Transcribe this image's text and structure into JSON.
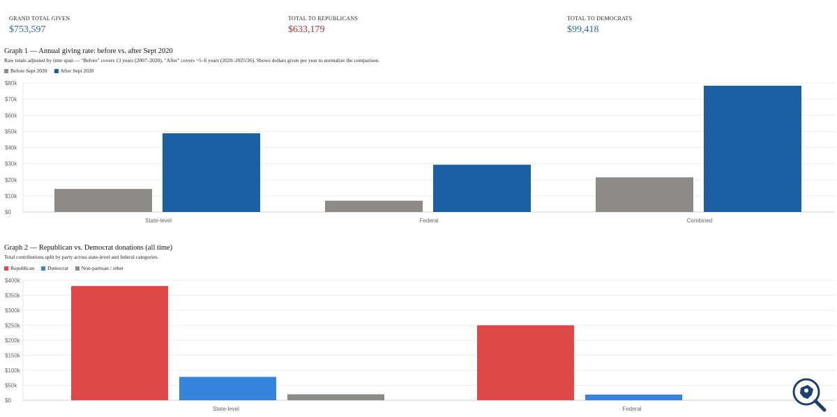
{
  "stats": [
    {
      "label": "GRAND TOTAL GIVEN",
      "value": "$753,597",
      "color": "#2e6aa8"
    },
    {
      "label": "TOTAL TO REPUBLICANS",
      "value": "$633,179",
      "color": "#a83232"
    },
    {
      "label": "TOTAL TO DEMOCRATS",
      "value": "$99,418",
      "color": "#2e6aa8"
    }
  ],
  "graph1": {
    "title": "Graph 1 — Annual giving rate: before vs. after Sept 2020",
    "subtitle": "Raw totals adjusted by time span — \"Before\" covers 13 years (2007–2020), \"After\" covers ~5–6 years (2020–2025/26). Shows dollars given per year to normalize the comparison.",
    "legend": [
      {
        "label": "Before Sept 2020",
        "color": "#8c8b87"
      },
      {
        "label": "After Sept 2020",
        "color": "#1b5fa3"
      }
    ]
  },
  "graph2": {
    "title": "Graph 2 — Republican vs. Democrat donations (all time)",
    "subtitle": "Total contributions split by party across state-level and federal categories.",
    "legend": [
      {
        "label": "Republican",
        "color": "#e04848"
      },
      {
        "label": "Democrat",
        "color": "#3585df"
      },
      {
        "label": "Non-partisan / other",
        "color": "#8c8b87"
      }
    ]
  },
  "chart_data": [
    {
      "type": "bar",
      "title": "Graph 1 — Annual giving rate: before vs. after Sept 2020",
      "categories": [
        "State-level",
        "Federal",
        "Combined"
      ],
      "series": [
        {
          "name": "Before Sept 2020",
          "color": "#8c8b87",
          "values": [
            14300,
            7000,
            21500
          ]
        },
        {
          "name": "After Sept 2020",
          "color": "#1b5fa3",
          "values": [
            48800,
            29300,
            78300
          ]
        }
      ],
      "ylim": [
        0,
        80000
      ],
      "yticks": [
        0,
        10000,
        20000,
        30000,
        40000,
        50000,
        60000,
        70000,
        80000
      ],
      "ytick_labels": [
        "$0",
        "$10k",
        "$20k",
        "$30k",
        "$40k",
        "$50k",
        "$60k",
        "$70k",
        "$80k"
      ],
      "grid": true
    },
    {
      "type": "bar",
      "title": "Graph 2 — Republican vs. Democrat donations (all time)",
      "categories": [
        "State-level",
        "Federal"
      ],
      "series": [
        {
          "name": "Republican",
          "color": "#e04848",
          "values": [
            381000,
            250000
          ]
        },
        {
          "name": "Democrat",
          "color": "#3585df",
          "values": [
            78000,
            19000
          ]
        },
        {
          "name": "Non-partisan / other",
          "color": "#8c8b87",
          "values": [
            20000,
            0
          ]
        }
      ],
      "ylim": [
        0,
        400000
      ],
      "yticks": [
        0,
        50000,
        100000,
        150000,
        200000,
        250000,
        300000,
        350000,
        400000
      ],
      "ytick_labels": [
        "$0",
        "$50k",
        "$100k",
        "$150k",
        "$200k",
        "$250k",
        "$300k",
        "$350k",
        "$400k"
      ],
      "grid": true
    }
  ]
}
